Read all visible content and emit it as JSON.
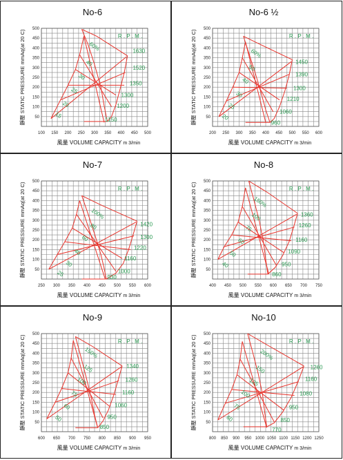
{
  "axes": {
    "xlabel_cn": "風量",
    "xlabel": "VOLUME CAPACITY",
    "xunit": "m 3/min",
    "ylabel_cn": "靜壓",
    "ylabel": "STATIC PRESSURE mmAq(at 20 C)",
    "y_ticks": [
      "50",
      "100",
      "150",
      "200",
      "250",
      "300",
      "350",
      "400",
      "450",
      "500"
    ],
    "rpm_label": "R . P . M ."
  },
  "chart_data": [
    {
      "type": "line",
      "title": "No-6",
      "x_ticks": [
        "100",
        "150",
        "200",
        "250",
        "300",
        "350",
        "400",
        "450",
        "500"
      ],
      "xlim": [
        100,
        500
      ],
      "ylim": [
        0,
        500
      ],
      "rpm": [
        "1630",
        "1520",
        "1350",
        "1300",
        "1200",
        "1150"
      ],
      "efficiency": [
        "60%",
        "40",
        "30",
        "25",
        "20",
        "15"
      ]
    },
    {
      "type": "line",
      "title": "No-6 ½",
      "x_ticks": [
        "200",
        "250",
        "300",
        "350",
        "400",
        "450",
        "500",
        "550",
        "600"
      ],
      "xlim": [
        200,
        600
      ],
      "ylim": [
        0,
        500
      ],
      "rpm": [
        "1450",
        "1390",
        "1300",
        "1210",
        "1060",
        "960"
      ],
      "efficiency": [
        "60%",
        "50",
        "40",
        "30",
        "25",
        "20"
      ]
    },
    {
      "type": "line",
      "title": "No-7",
      "x_ticks": [
        "250",
        "300",
        "350",
        "400",
        "450",
        "500",
        "550",
        "600"
      ],
      "xlim": [
        250,
        600
      ],
      "ylim": [
        0,
        500
      ],
      "rpm": [
        "1420",
        "1300",
        "1220",
        "1160",
        "1000",
        "930"
      ],
      "efficiency": [
        "100%",
        "80",
        "60",
        "40",
        "30",
        "25"
      ]
    },
    {
      "type": "line",
      "title": "No-8",
      "x_ticks": [
        "400",
        "450",
        "500",
        "550",
        "600",
        "650",
        "700",
        "750"
      ],
      "xlim": [
        400,
        750
      ],
      "ylim": [
        0,
        500
      ],
      "rpm": [
        "1360",
        "1260",
        "1160",
        "1090",
        "950",
        "860"
      ],
      "efficiency": [
        "150%",
        "100",
        "75",
        "60",
        "50",
        "40"
      ]
    },
    {
      "type": "line",
      "title": "No-9",
      "x_ticks": [
        "600",
        "650",
        "700",
        "750",
        "800",
        "850",
        "900",
        "950"
      ],
      "xlim": [
        600,
        950
      ],
      "ylim": [
        0,
        500
      ],
      "rpm": [
        "1340",
        "1260",
        "1160",
        "1060",
        "950",
        "850"
      ],
      "efficiency": [
        "150%",
        "125",
        "100",
        "75",
        "60",
        "50"
      ]
    },
    {
      "type": "line",
      "title": "No-10",
      "x_ticks": [
        "800",
        "850",
        "900",
        "950",
        "1000",
        "1050",
        "1100",
        "1150",
        "1200",
        "1250"
      ],
      "xlim": [
        800,
        1250
      ],
      "ylim": [
        0,
        500
      ],
      "rpm": [
        "1260",
        "1160",
        "1080",
        "950",
        "850",
        "770"
      ],
      "efficiency": [
        "200%",
        "150",
        "125",
        "100",
        "75",
        "60"
      ]
    }
  ]
}
